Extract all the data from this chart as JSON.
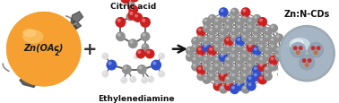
{
  "background_color": "#ffffff",
  "figsize": [
    3.78,
    1.16
  ],
  "dpi": 100,
  "zn_sphere_color": "#F5A030",
  "zn_sphere_edge": "#E08010",
  "zn_label": "Zn(OAc)",
  "zn_label2": "2",
  "plus_sign": "+",
  "arrow_color": "#111111",
  "label_ethylenediamine": "Ethylenediamine",
  "label_citric_acid": "Citric acid",
  "label_product": "Zn:N-CDs",
  "product_sphere_color_outer": "#B0BEC5",
  "product_sphere_color_inner": "#CFD8DC",
  "product_sphere_highlight": "#E8EEF2",
  "carbon_color": "#909090",
  "nitrogen_color": "#3050CC",
  "oxygen_color": "#CC2020",
  "hydrogen_color": "#DDDDDD",
  "bond_color": "#555555",
  "font_bold": true,
  "claw_color": "#888888",
  "text_color": "#111111"
}
